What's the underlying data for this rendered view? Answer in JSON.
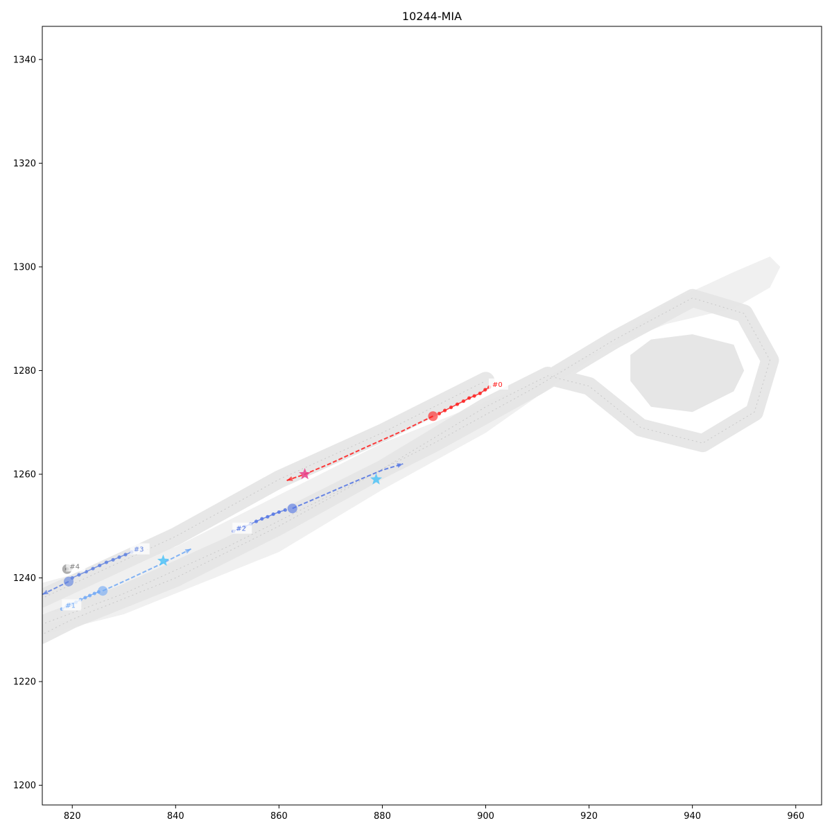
{
  "chart_data": {
    "type": "scatter",
    "title": "10244-MIA",
    "xlabel": "",
    "ylabel": "",
    "xlim": [
      814.2,
      965.0
    ],
    "ylim": [
      1196.2,
      1346.4
    ],
    "xticks": [
      820,
      840,
      860,
      880,
      900,
      920,
      940,
      960
    ],
    "yticks": [
      1200,
      1220,
      1240,
      1260,
      1280,
      1300,
      1320,
      1340
    ],
    "grid": false,
    "map": {
      "road_areas": [
        [
          [
            814,
            1229
          ],
          [
            830,
            1233
          ],
          [
            860,
            1245
          ],
          [
            880,
            1257
          ],
          [
            900,
            1268
          ],
          [
            920,
            1282
          ],
          [
            935,
            1293
          ],
          [
            948,
            1299
          ],
          [
            955,
            1302
          ],
          [
            957,
            1300
          ],
          [
            955,
            1296
          ],
          [
            948,
            1292
          ],
          [
            935,
            1289
          ],
          [
            920,
            1283
          ],
          [
            900,
            1273
          ],
          [
            880,
            1263
          ],
          [
            860,
            1252
          ],
          [
            840,
            1242
          ],
          [
            820,
            1232
          ],
          [
            814,
            1231
          ]
        ],
        [
          [
            814,
            1233
          ],
          [
            840,
            1238
          ],
          [
            880,
            1258
          ],
          [
            905,
            1272
          ],
          [
            905,
            1276
          ],
          [
            880,
            1266
          ],
          [
            840,
            1246
          ],
          [
            814,
            1239
          ]
        ]
      ],
      "lanes": [
        [
          [
            814,
            1231
          ],
          [
            830,
            1237
          ],
          [
            850,
            1246
          ],
          [
            870,
            1256
          ],
          [
            890,
            1266
          ],
          [
            910,
            1277
          ],
          [
            925,
            1286
          ],
          [
            940,
            1294
          ],
          [
            950,
            1291
          ],
          [
            955,
            1282
          ],
          [
            952,
            1272
          ],
          [
            942,
            1266
          ],
          [
            930,
            1269
          ],
          [
            920,
            1277
          ],
          [
            912,
            1279
          ],
          [
            900,
            1273
          ],
          [
            880,
            1261
          ],
          [
            860,
            1250
          ],
          [
            840,
            1240
          ],
          [
            820,
            1232
          ],
          [
            814,
            1229
          ]
        ],
        [
          [
            814,
            1236
          ],
          [
            840,
            1248
          ],
          [
            860,
            1259
          ],
          [
            880,
            1268
          ],
          [
            900,
            1278
          ]
        ]
      ],
      "island": [
        [
          928,
          1283
        ],
        [
          932,
          1286
        ],
        [
          940,
          1287
        ],
        [
          948,
          1285
        ],
        [
          950,
          1280
        ],
        [
          948,
          1276
        ],
        [
          940,
          1272
        ],
        [
          932,
          1273
        ],
        [
          928,
          1278
        ]
      ]
    },
    "series": [
      {
        "label": "#0",
        "color": "#ff1a1a",
        "history": [
          [
            900.7,
            1276.8
          ],
          [
            899.9,
            1276.3
          ],
          [
            898.9,
            1275.6
          ],
          [
            897.8,
            1275.1
          ],
          [
            896.8,
            1274.7
          ],
          [
            895.7,
            1274.1
          ],
          [
            894.5,
            1273.5
          ],
          [
            893.3,
            1272.9
          ],
          [
            892.1,
            1272.3
          ],
          [
            891.0,
            1271.7
          ]
        ],
        "current": [
          889.8,
          1271.2
        ],
        "future": [
          [
            889.8,
            1271.2
          ],
          [
            884.0,
            1268.4
          ],
          [
            877.0,
            1265.3
          ],
          [
            870.0,
            1262.1
          ],
          [
            865.0,
            1260.0
          ],
          [
            861.5,
            1258.8
          ]
        ],
        "goal": [
          865.0,
          1260.0
        ],
        "goal_color": "#e8408a",
        "label_pos": [
          901.0,
          1277.0
        ]
      },
      {
        "label": "#1",
        "color": "#6fa8f5",
        "history": [
          [
            818.0,
            1234.0
          ],
          [
            818.9,
            1234.5
          ],
          [
            819.8,
            1234.9
          ],
          [
            820.7,
            1235.3
          ],
          [
            821.6,
            1235.8
          ],
          [
            822.5,
            1236.2
          ],
          [
            823.4,
            1236.6
          ],
          [
            824.3,
            1237.0
          ],
          [
            825.1,
            1237.3
          ]
        ],
        "current": [
          825.9,
          1237.5
        ],
        "future": [
          [
            825.9,
            1237.5
          ],
          [
            831.0,
            1239.8
          ],
          [
            837.0,
            1242.6
          ],
          [
            843.0,
            1245.6
          ]
        ],
        "goal": [
          837.6,
          1243.3
        ],
        "goal_color": "#4fc3f7",
        "label_pos": [
          818.4,
          1234.4
        ]
      },
      {
        "label": "#2",
        "color": "#4f72e3",
        "history": [
          [
            851.2,
            1249.0
          ],
          [
            852.3,
            1249.5
          ],
          [
            853.4,
            1249.9
          ],
          [
            854.5,
            1250.4
          ],
          [
            855.6,
            1250.9
          ],
          [
            856.7,
            1251.4
          ],
          [
            857.8,
            1251.8
          ],
          [
            858.9,
            1252.3
          ],
          [
            860.0,
            1252.7
          ],
          [
            861.2,
            1253.1
          ]
        ],
        "current": [
          862.6,
          1253.4
        ],
        "future": [
          [
            862.6,
            1253.4
          ],
          [
            868.0,
            1255.7
          ],
          [
            874.0,
            1258.3
          ],
          [
            880.0,
            1260.8
          ],
          [
            884.0,
            1262.0
          ]
        ],
        "goal": [
          878.8,
          1259.0
        ],
        "goal_color": "#4fc3f7",
        "label_pos": [
          851.4,
          1249.2
        ]
      },
      {
        "label": "#3",
        "color": "#5c7fe0",
        "history": [
          [
            820.0,
            1240.0
          ],
          [
            821.3,
            1240.6
          ],
          [
            822.7,
            1241.2
          ],
          [
            824.0,
            1241.8
          ],
          [
            825.3,
            1242.4
          ],
          [
            826.6,
            1243.0
          ],
          [
            827.9,
            1243.5
          ],
          [
            829.1,
            1244.0
          ],
          [
            830.3,
            1244.5
          ],
          [
            831.5,
            1245.0
          ]
        ],
        "current": [
          819.3,
          1239.3
        ],
        "future": [
          [
            819.3,
            1239.3
          ],
          [
            814.2,
            1236.8
          ]
        ],
        "goal": null,
        "goal_color": "",
        "label_pos": [
          831.6,
          1245.2
        ]
      },
      {
        "label": "#4",
        "color": "#7a7a7a",
        "history": [],
        "current": [
          819.0,
          1241.7
        ],
        "future": [],
        "goal": null,
        "goal_color": "",
        "label_pos": [
          819.2,
          1241.9
        ]
      }
    ]
  }
}
